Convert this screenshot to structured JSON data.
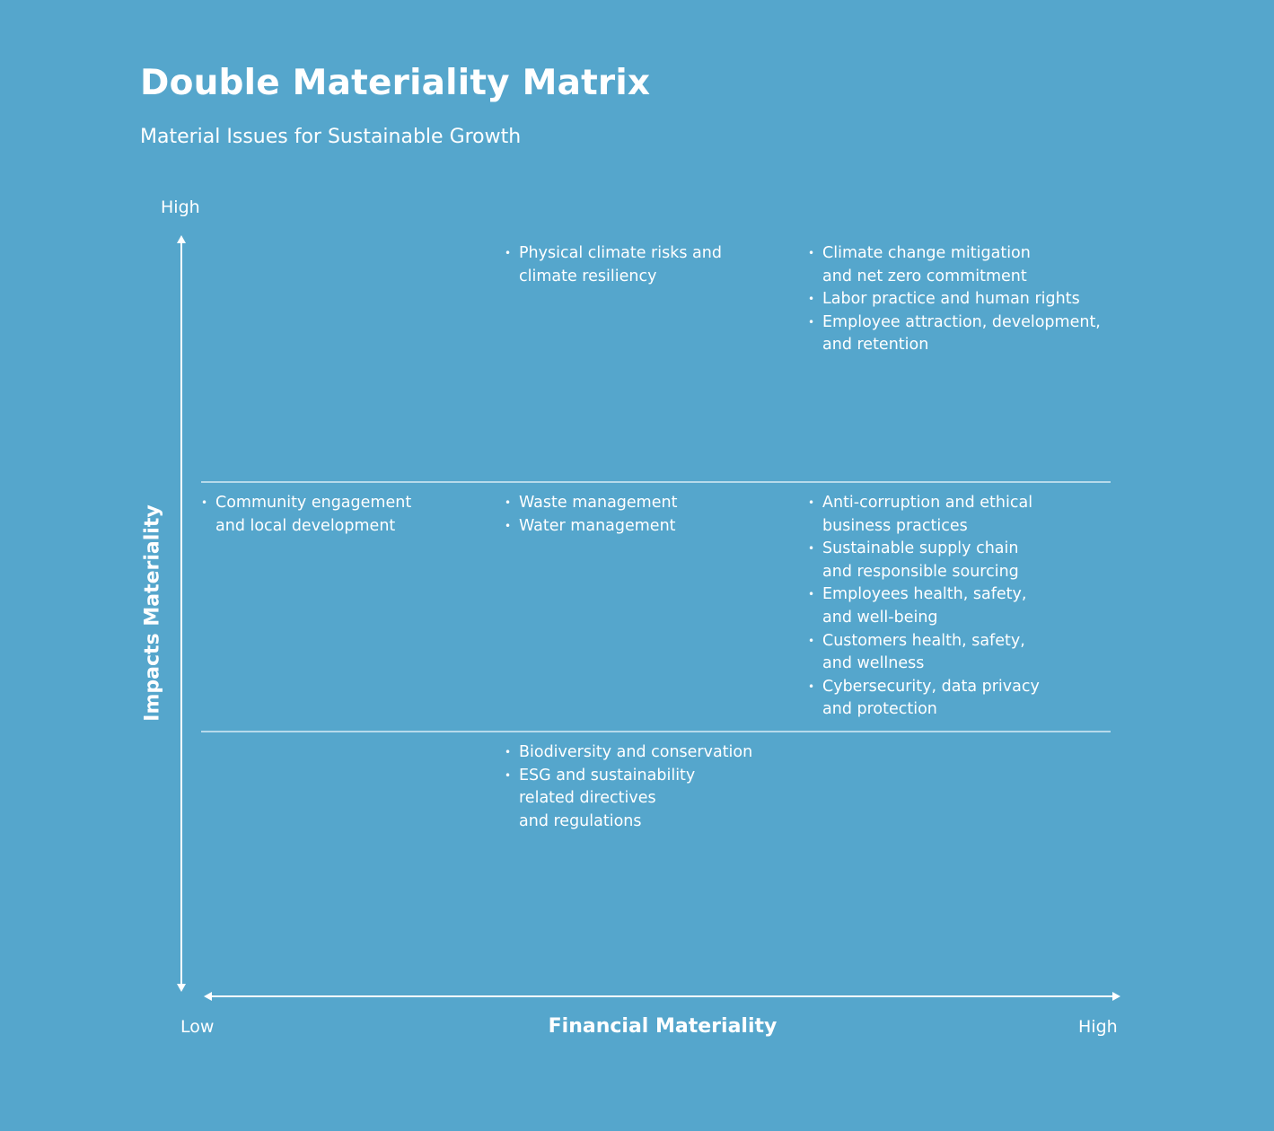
{
  "header": {
    "title": "Double Materiality Matrix",
    "subtitle": "Material Issues for Sustainable Growth"
  },
  "axes": {
    "y_high_label": "High",
    "y_title": "Impacts Materiality",
    "x_low_label": "Low",
    "x_title": "Financial Materiality",
    "x_high_label": "High"
  },
  "cells": {
    "high_mid": [
      "Physical climate risks and\nclimate resiliency"
    ],
    "high_high": [
      "Climate change mitigation\nand net zero commitment",
      "Labor practice and human rights",
      "Employee attraction, development,\nand retention"
    ],
    "mid_low": [
      "Community engagement\nand local development"
    ],
    "mid_mid": [
      "Waste management",
      "Water management"
    ],
    "mid_high": [
      "Anti-corruption and ethical\nbusiness practices",
      "Sustainable supply chain\nand responsible sourcing",
      "Employees health, safety,\nand well-being",
      "Customers health, safety,\nand wellness",
      "Cybersecurity, data privacy\nand protection"
    ],
    "low_mid": [
      "Biodiversity and conservation",
      "ESG and sustainability\nrelated directives\nand regulations"
    ]
  },
  "colors": {
    "background": "#55a6cc",
    "foreground": "#ffffff",
    "divider": "#d6ebf5"
  }
}
